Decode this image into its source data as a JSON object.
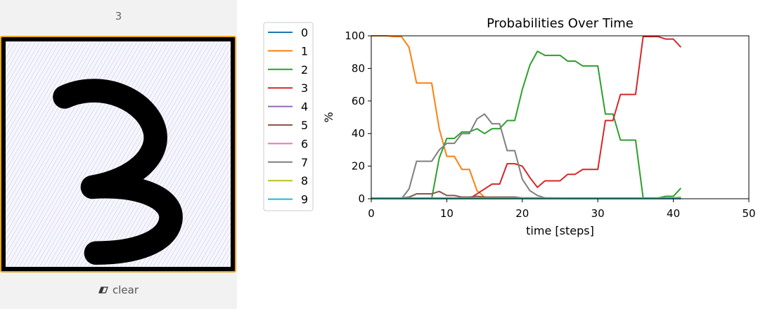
{
  "predicted_label": "3",
  "clear_label": "clear",
  "icons": {
    "clear": "eraser-icon"
  },
  "canvas": {
    "frame_color": "#e6a619",
    "stroke_color": "#000000"
  },
  "chart_data": {
    "type": "line",
    "title": "Probabilities Over Time",
    "xlabel": "time [steps]",
    "ylabel": "%",
    "xlim": [
      0,
      50
    ],
    "ylim": [
      0,
      100
    ],
    "xticks": [
      0,
      10,
      20,
      30,
      40,
      50
    ],
    "yticks": [
      0,
      20,
      40,
      60,
      80,
      100
    ],
    "grid": false,
    "legend_position": "outside-left",
    "x": [
      0,
      1,
      2,
      3,
      4,
      5,
      6,
      7,
      8,
      9,
      10,
      11,
      12,
      13,
      14,
      15,
      16,
      17,
      18,
      19,
      20,
      21,
      22,
      23,
      24,
      25,
      26,
      27,
      28,
      29,
      30,
      31,
      32,
      33,
      34,
      35,
      36,
      37,
      38,
      39,
      40,
      41
    ],
    "series": [
      {
        "name": "0",
        "color": "#1f77b4",
        "values": [
          0,
          0,
          0,
          0,
          0,
          0,
          0,
          0,
          0,
          0,
          0,
          0,
          0,
          0,
          0,
          0,
          0,
          0,
          0,
          0,
          0,
          0,
          0,
          0,
          0,
          0,
          0,
          0,
          0,
          0,
          0,
          0,
          0,
          0,
          0,
          0,
          0,
          0,
          0,
          0,
          0,
          0
        ]
      },
      {
        "name": "1",
        "color": "#ff7f0e",
        "values": [
          100,
          100,
          100,
          99.5,
          99.5,
          93,
          71,
          71,
          71,
          43,
          26,
          26,
          18,
          18,
          5,
          1,
          0.5,
          0.5,
          0.5,
          0.5,
          0.5,
          0.5,
          0.5,
          0.5,
          0.5,
          0,
          0,
          0,
          0,
          0,
          0,
          0,
          0,
          0,
          0,
          0,
          0,
          0,
          0,
          0,
          0,
          0
        ]
      },
      {
        "name": "2",
        "color": "#2ca02c",
        "values": [
          0,
          0,
          0,
          0,
          0,
          0,
          0,
          0,
          0,
          25,
          37,
          37,
          41,
          41,
          43,
          40,
          43,
          43,
          48,
          48,
          67,
          82,
          90.5,
          88,
          88,
          88,
          84.5,
          84.5,
          81.5,
          81.5,
          81.5,
          52,
          52,
          36,
          36,
          36,
          0.5,
          0.5,
          0.5,
          1.5,
          1.5,
          6.5
        ]
      },
      {
        "name": "3",
        "color": "#d62728",
        "values": [
          0,
          0,
          0,
          0,
          0,
          0,
          0,
          0,
          0,
          0,
          0,
          0,
          0,
          0,
          3,
          6,
          9,
          9,
          21.5,
          21.5,
          20,
          13,
          7,
          11,
          11,
          11,
          15,
          15,
          18,
          18,
          18,
          48,
          48,
          64,
          64,
          64,
          99.5,
          99.5,
          99.5,
          98,
          98,
          93
        ]
      },
      {
        "name": "4",
        "color": "#9467bd",
        "values": [
          0,
          0,
          0,
          0,
          0,
          0,
          0,
          0,
          0,
          0,
          0,
          0,
          0,
          0,
          0,
          0,
          0,
          0,
          0,
          0,
          0,
          0,
          0,
          0,
          0,
          0,
          0,
          0,
          0,
          0,
          0,
          0,
          0,
          0,
          0,
          0,
          0,
          0,
          0,
          0,
          0,
          0
        ]
      },
      {
        "name": "5",
        "color": "#8c564b",
        "values": [
          0,
          0,
          0,
          0,
          0.5,
          1,
          3,
          3,
          3,
          4.5,
          2,
          2,
          1,
          1,
          1.5,
          1,
          1,
          1,
          1,
          1,
          0.5,
          0.5,
          0.5,
          0.3,
          0.3,
          0.3,
          0.3,
          0.3,
          0.3,
          0.3,
          0.3,
          0.2,
          0.2,
          0.2,
          0.2,
          0.2,
          0.2,
          0.2,
          0.2,
          0.2,
          0.2,
          0.2
        ]
      },
      {
        "name": "6",
        "color": "#e377c2",
        "values": [
          0,
          0,
          0,
          0,
          0,
          0,
          0,
          0,
          0,
          0,
          0,
          0,
          0,
          0,
          0,
          0,
          0,
          0,
          0,
          0,
          0,
          0,
          0,
          0,
          0,
          0,
          0,
          0,
          0,
          0,
          0,
          0,
          0,
          0,
          0,
          0,
          0,
          0,
          0,
          0,
          0,
          0
        ]
      },
      {
        "name": "7",
        "color": "#7f7f7f",
        "values": [
          0,
          0,
          0,
          0,
          0,
          6,
          23,
          23,
          23,
          30,
          34,
          34,
          40,
          40,
          49,
          52,
          46,
          46,
          29.5,
          29.5,
          12,
          5,
          2,
          0.5,
          0.5,
          0.5,
          0.3,
          0.3,
          0.3,
          0.3,
          0.3,
          0.3,
          0.3,
          0.3,
          0.3,
          0.3,
          0.3,
          0.3,
          0.3,
          0.3,
          0.3,
          0.3
        ]
      },
      {
        "name": "8",
        "color": "#bcbd22",
        "values": [
          0,
          0,
          0,
          0,
          0,
          0,
          0,
          0,
          0,
          0,
          0,
          0,
          0,
          0,
          0,
          0,
          0,
          0,
          0,
          0,
          0,
          0,
          0,
          0,
          0,
          0,
          0,
          0,
          0,
          0,
          0,
          0,
          0,
          0,
          0,
          0,
          0,
          0,
          0,
          0.5,
          0.5,
          1
        ]
      },
      {
        "name": "9",
        "color": "#17becf",
        "values": [
          0.5,
          0.5,
          0.5,
          0.5,
          0.5,
          0.5,
          0.5,
          0.5,
          0.5,
          0.5,
          0.5,
          0.5,
          0.5,
          0.5,
          0.5,
          0.5,
          0.5,
          0.5,
          0.5,
          0.5,
          0.5,
          0.5,
          0.5,
          0.5,
          0.5,
          0.5,
          0.5,
          0.5,
          0.5,
          0.5,
          0.5,
          0.5,
          0.5,
          0.5,
          0.5,
          0.5,
          0.5,
          0.5,
          0.5,
          0.5,
          0.5,
          0.5
        ]
      }
    ]
  }
}
